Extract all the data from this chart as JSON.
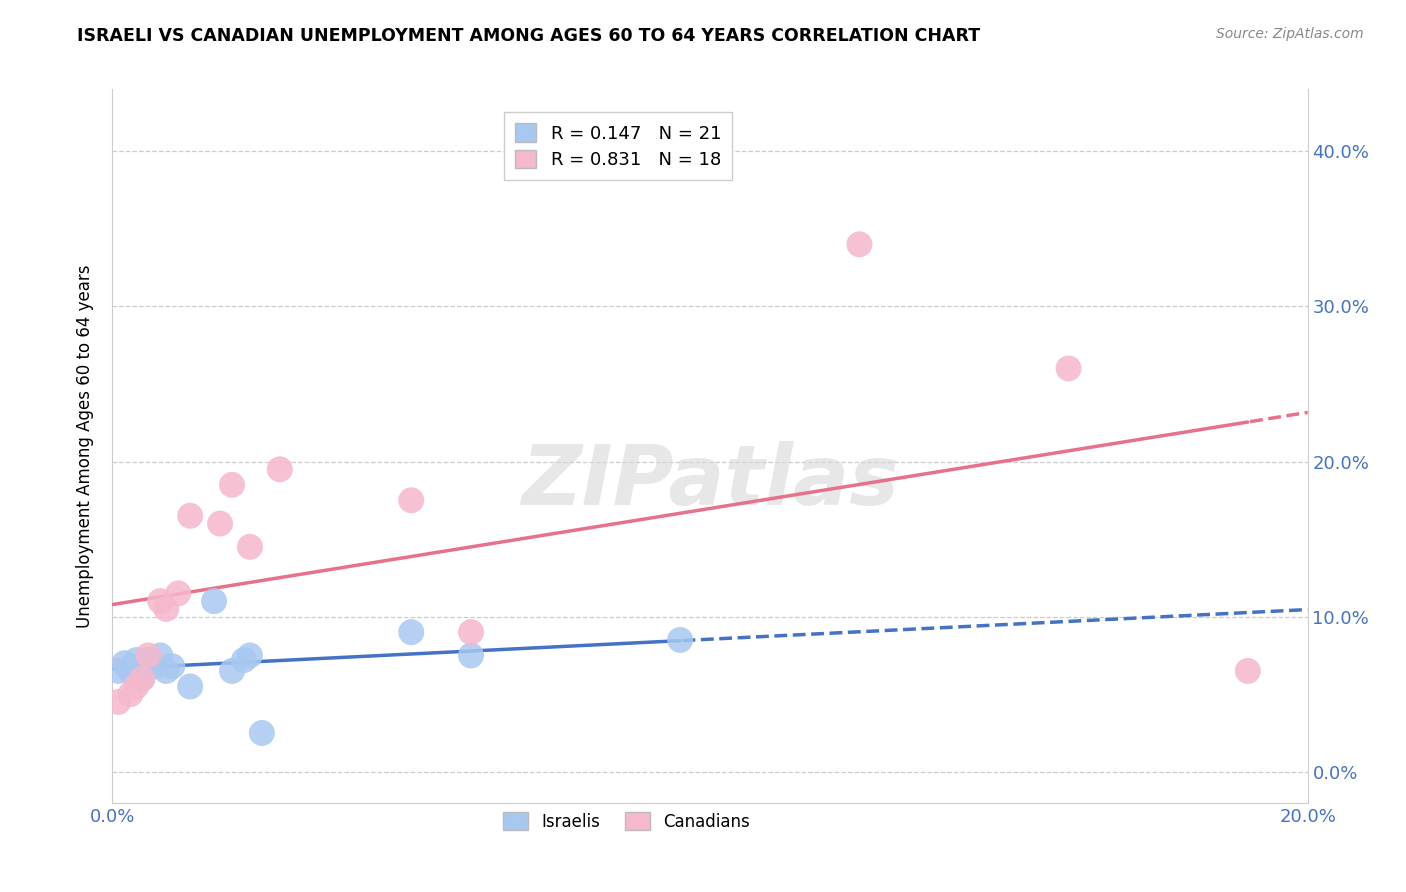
{
  "title": "ISRAELI VS CANADIAN UNEMPLOYMENT AMONG AGES 60 TO 64 YEARS CORRELATION CHART",
  "source": "Source: ZipAtlas.com",
  "ylabel": "Unemployment Among Ages 60 to 64 years",
  "xlim": [
    0.0,
    0.2
  ],
  "ylim": [
    -0.02,
    0.44
  ],
  "xticks": [
    0.0,
    0.05,
    0.1,
    0.15,
    0.2
  ],
  "yticks": [
    0.0,
    0.1,
    0.2,
    0.3,
    0.4
  ],
  "ytick_labels_right": [
    "0.0%",
    "10.0%",
    "20.0%",
    "30.0%",
    "40.0%"
  ],
  "xtick_labels": [
    "0.0%",
    "",
    "",
    "",
    "20.0%"
  ],
  "israeli_R": 0.147,
  "israeli_N": 21,
  "canadian_R": 0.831,
  "canadian_N": 18,
  "israeli_color": "#A8C8F0",
  "canadian_color": "#F5B8CC",
  "israeli_line_color": "#4472C4",
  "canadian_line_color": "#E8718A",
  "tick_color": "#4472C4",
  "watermark": "ZIPatlas",
  "israelis_x": [
    0.001,
    0.002,
    0.003,
    0.003,
    0.004,
    0.005,
    0.005,
    0.006,
    0.007,
    0.008,
    0.009,
    0.01,
    0.013,
    0.017,
    0.02,
    0.022,
    0.023,
    0.025,
    0.05,
    0.06,
    0.095
  ],
  "israelis_y": [
    0.065,
    0.07,
    0.065,
    0.068,
    0.072,
    0.06,
    0.068,
    0.072,
    0.068,
    0.075,
    0.065,
    0.068,
    0.055,
    0.11,
    0.065,
    0.072,
    0.075,
    0.025,
    0.09,
    0.075,
    0.085
  ],
  "canadians_x": [
    0.001,
    0.003,
    0.004,
    0.005,
    0.006,
    0.008,
    0.009,
    0.011,
    0.013,
    0.018,
    0.02,
    0.023,
    0.028,
    0.05,
    0.06,
    0.125,
    0.16,
    0.19
  ],
  "canadians_y": [
    0.045,
    0.05,
    0.055,
    0.06,
    0.075,
    0.11,
    0.105,
    0.115,
    0.165,
    0.16,
    0.185,
    0.145,
    0.195,
    0.175,
    0.09,
    0.34,
    0.26,
    0.065
  ]
}
